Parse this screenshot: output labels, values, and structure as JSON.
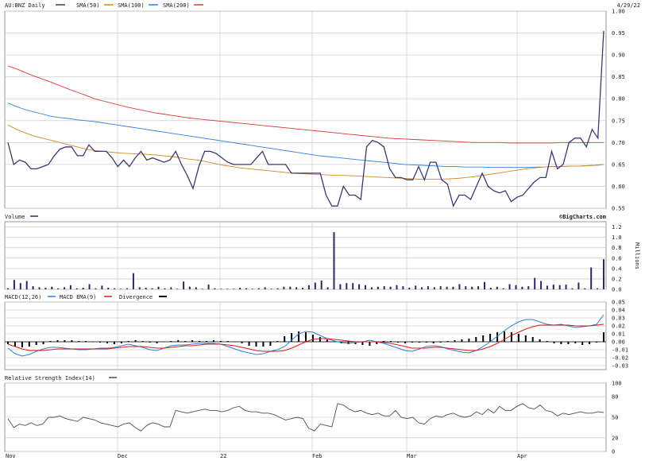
{
  "date": "4/29/22",
  "source": "©BigCharts.com",
  "months": [
    "Nov",
    "Dec",
    "22",
    "Feb",
    "Mar",
    "Apr"
  ],
  "colors": {
    "price": "#3a3a6e",
    "sma50": "#d08a2a",
    "sma100": "#2e7fe0",
    "sma200": "#d83a3a",
    "volume": "#2a2a5c",
    "macd": "#2e7fe0",
    "ema": "#d81c1c",
    "divergence": "#000000",
    "rsi": "#4a4a6e"
  },
  "chart_data": [
    {
      "type": "line",
      "title": "AU:BNZ Daily",
      "legend": [
        "AU:BNZ Daily",
        "SMA(50)",
        "SMA(100)",
        "SMA(200)"
      ],
      "y_ticks": [
        "0.55",
        "0.60",
        "0.65",
        "0.70",
        "0.75",
        "0.80",
        "0.85",
        "0.90",
        "0.95",
        "1.00"
      ],
      "ylim": [
        0.55,
        1.0
      ],
      "n": 104,
      "series": [
        {
          "name": "AU:BNZ Daily",
          "values": [
            0.7,
            0.65,
            0.66,
            0.655,
            0.64,
            0.64,
            0.645,
            0.65,
            0.67,
            0.685,
            0.69,
            0.69,
            0.67,
            0.67,
            0.695,
            0.68,
            0.68,
            0.68,
            0.665,
            0.645,
            0.66,
            0.645,
            0.665,
            0.68,
            0.66,
            0.665,
            0.66,
            0.655,
            0.66,
            0.68,
            0.65,
            0.625,
            0.595,
            0.645,
            0.68,
            0.68,
            0.675,
            0.665,
            0.655,
            0.65,
            0.65,
            0.65,
            0.65,
            0.665,
            0.68,
            0.65,
            0.65,
            0.65,
            0.65,
            0.63,
            0.63,
            0.63,
            0.63,
            0.63,
            0.63,
            0.58,
            0.555,
            0.555,
            0.6,
            0.58,
            0.58,
            0.57,
            0.69,
            0.705,
            0.7,
            0.69,
            0.64,
            0.62,
            0.62,
            0.615,
            0.615,
            0.645,
            0.615,
            0.655,
            0.655,
            0.615,
            0.605,
            0.555,
            0.58,
            0.58,
            0.57,
            0.6,
            0.63,
            0.6,
            0.59,
            0.585,
            0.59,
            0.565,
            0.575,
            0.58,
            0.595,
            0.61,
            0.62,
            0.62,
            0.68,
            0.64,
            0.65,
            0.7,
            0.71,
            0.71,
            0.69,
            0.73,
            0.71,
            0.955
          ]
        },
        {
          "name": "SMA(50)",
          "values": [
            0.74,
            0.73,
            0.722,
            0.715,
            0.71,
            0.705,
            0.7,
            0.695,
            0.69,
            0.685,
            0.682,
            0.68,
            0.678,
            0.676,
            0.675,
            0.674,
            0.673,
            0.672,
            0.67,
            0.668,
            0.665,
            0.662,
            0.66,
            0.656,
            0.652,
            0.648,
            0.645,
            0.642,
            0.64,
            0.638,
            0.636,
            0.634,
            0.632,
            0.63,
            0.629,
            0.628,
            0.627,
            0.626,
            0.625,
            0.625,
            0.624,
            0.623,
            0.622,
            0.621,
            0.62,
            0.619,
            0.618,
            0.617,
            0.616,
            0.616,
            0.616,
            0.617,
            0.618,
            0.62,
            0.622,
            0.625,
            0.628,
            0.631,
            0.634,
            0.637,
            0.64,
            0.642,
            0.644,
            0.645,
            0.645,
            0.646,
            0.646,
            0.647,
            0.648,
            0.65
          ]
        },
        {
          "name": "SMA(100)",
          "values": [
            0.79,
            0.782,
            0.775,
            0.77,
            0.765,
            0.76,
            0.757,
            0.755,
            0.752,
            0.75,
            0.748,
            0.745,
            0.742,
            0.739,
            0.736,
            0.733,
            0.73,
            0.727,
            0.724,
            0.721,
            0.718,
            0.715,
            0.712,
            0.709,
            0.706,
            0.703,
            0.7,
            0.697,
            0.694,
            0.691,
            0.688,
            0.685,
            0.682,
            0.679,
            0.676,
            0.673,
            0.67,
            0.668,
            0.666,
            0.664,
            0.662,
            0.66,
            0.658,
            0.656,
            0.654,
            0.652,
            0.65,
            0.649,
            0.648,
            0.647,
            0.646,
            0.645,
            0.645,
            0.644,
            0.644,
            0.644,
            0.643,
            0.643,
            0.643,
            0.643,
            0.643,
            0.644,
            0.644,
            0.645,
            0.645,
            0.646,
            0.646,
            0.647,
            0.648,
            0.65
          ]
        },
        {
          "name": "SMA(200)",
          "values": [
            0.875,
            0.868,
            0.86,
            0.852,
            0.845,
            0.838,
            0.83,
            0.822,
            0.815,
            0.808,
            0.8,
            0.795,
            0.79,
            0.785,
            0.78,
            0.776,
            0.772,
            0.768,
            0.765,
            0.762,
            0.759,
            0.756,
            0.754,
            0.752,
            0.75,
            0.748,
            0.746,
            0.744,
            0.742,
            0.74,
            0.738,
            0.736,
            0.734,
            0.732,
            0.73,
            0.728,
            0.726,
            0.724,
            0.722,
            0.72,
            0.718,
            0.716,
            0.714,
            0.712,
            0.71,
            0.709,
            0.708,
            0.707,
            0.706,
            0.705,
            0.704,
            0.703,
            0.702,
            0.701,
            0.7,
            0.7,
            0.7,
            0.7,
            0.699,
            0.699,
            0.699,
            0.699,
            0.699,
            0.699,
            0.7,
            0.7,
            0.7,
            0.7,
            0.7,
            0.7
          ]
        }
      ]
    },
    {
      "type": "bar",
      "title": "Volume",
      "legend": [
        "Volume"
      ],
      "ylabel": "Millions",
      "y_ticks": [
        "0.0",
        "0.2",
        "0.4",
        "0.6",
        "0.8",
        "1.0",
        "1.2"
      ],
      "ylim": [
        0,
        1.3
      ],
      "values": [
        0.02,
        0.18,
        0.12,
        0.16,
        0.06,
        0.04,
        0.03,
        0.05,
        0.02,
        0.04,
        0.08,
        0.02,
        0.03,
        0.1,
        0.02,
        0.07,
        0.03,
        0.02,
        0.01,
        0.02,
        0.31,
        0.04,
        0.03,
        0.02,
        0.05,
        0.02,
        0.04,
        0.01,
        0.15,
        0.05,
        0.04,
        0.01,
        0.09,
        0.02,
        0.01,
        0.01,
        0.01,
        0.03,
        0.02,
        0.01,
        0.02,
        0.04,
        0.01,
        0.02,
        0.05,
        0.05,
        0.04,
        0.03,
        0.08,
        0.13,
        0.17,
        0.04,
        1.1,
        0.1,
        0.12,
        0.12,
        0.1,
        0.08,
        0.04,
        0.05,
        0.06,
        0.05,
        0.08,
        0.06,
        0.03,
        0.07,
        0.04,
        0.06,
        0.04,
        0.06,
        0.05,
        0.05,
        0.1,
        0.06,
        0.05,
        0.06,
        0.14,
        0.03,
        0.05,
        0.02,
        0.1,
        0.08,
        0.05,
        0.06,
        0.22,
        0.16,
        0.07,
        0.09,
        0.08,
        0.09,
        0.02,
        0.13,
        0.02,
        0.42,
        0.02,
        0.58
      ]
    },
    {
      "type": "line",
      "title": "MACD(12,26)",
      "legend": [
        "MACD(12,26)",
        "MACD EMA(9)",
        "Divergence"
      ],
      "y_ticks": [
        "-0.03",
        "-0.02",
        "-0.01",
        "0.00",
        "0.01",
        "0.02",
        "0.03",
        "0.04",
        "0.05"
      ],
      "ylim": [
        -0.035,
        0.05
      ],
      "n": 104,
      "series": [
        {
          "name": "MACD(12,26)",
          "values": [
            -0.008,
            -0.015,
            -0.018,
            -0.016,
            -0.012,
            -0.009,
            -0.007,
            -0.007,
            -0.008,
            -0.009,
            -0.01,
            -0.01,
            -0.009,
            -0.008,
            -0.008,
            -0.007,
            -0.005,
            -0.003,
            -0.005,
            -0.007,
            -0.01,
            -0.011,
            -0.008,
            -0.005,
            -0.004,
            -0.004,
            -0.003,
            -0.002,
            -0.002,
            -0.002,
            -0.003,
            -0.006,
            -0.009,
            -0.012,
            -0.014,
            -0.016,
            -0.015,
            -0.012,
            -0.01,
            -0.006,
            0.002,
            0.01,
            0.013,
            0.012,
            0.008,
            0.004,
            0.001,
            -0.001,
            -0.002,
            -0.001,
            0.0,
            0.002,
            0.0,
            -0.002,
            -0.005,
            -0.008,
            -0.011,
            -0.012,
            -0.009,
            -0.006,
            -0.005,
            -0.006,
            -0.009,
            -0.011,
            -0.013,
            -0.014,
            -0.011,
            -0.006,
            0.0,
            0.007,
            0.014,
            0.02,
            0.025,
            0.028,
            0.028,
            0.025,
            0.022,
            0.021,
            0.022,
            0.02,
            0.018,
            0.019,
            0.02,
            0.022,
            0.034
          ]
        },
        {
          "name": "MACD EMA(9)",
          "values": [
            -0.003,
            -0.006,
            -0.009,
            -0.011,
            -0.011,
            -0.011,
            -0.01,
            -0.009,
            -0.009,
            -0.009,
            -0.009,
            -0.009,
            -0.009,
            -0.009,
            -0.009,
            -0.008,
            -0.007,
            -0.006,
            -0.006,
            -0.006,
            -0.007,
            -0.008,
            -0.008,
            -0.007,
            -0.006,
            -0.005,
            -0.005,
            -0.004,
            -0.003,
            -0.003,
            -0.003,
            -0.004,
            -0.005,
            -0.007,
            -0.009,
            -0.011,
            -0.012,
            -0.012,
            -0.012,
            -0.011,
            -0.008,
            -0.004,
            0.0,
            0.003,
            0.004,
            0.004,
            0.003,
            0.002,
            0.001,
            0.0,
            0.0,
            0.0,
            0.0,
            -0.001,
            -0.002,
            -0.004,
            -0.006,
            -0.008,
            -0.008,
            -0.008,
            -0.007,
            -0.007,
            -0.008,
            -0.009,
            -0.01,
            -0.011,
            -0.011,
            -0.009,
            -0.006,
            -0.002,
            0.003,
            0.008,
            0.012,
            0.016,
            0.019,
            0.021,
            0.021,
            0.021,
            0.021,
            0.021,
            0.02,
            0.02,
            0.02,
            0.021,
            0.022
          ]
        },
        {
          "name": "Divergence",
          "values": [
            -0.003,
            -0.006,
            -0.007,
            -0.006,
            -0.004,
            -0.003,
            0.001,
            0.002,
            0.002,
            0.002,
            0.001,
            0.001,
            0.0,
            -0.001,
            -0.002,
            -0.003,
            -0.002,
            0.001,
            0.002,
            0.001,
            -0.001,
            -0.002,
            0.0,
            0.001,
            0.002,
            0.001,
            0.002,
            0.001,
            0.001,
            0.002,
            0.001,
            0.001,
            0.0,
            -0.002,
            -0.005,
            -0.006,
            -0.006,
            -0.005,
            0.001,
            0.007,
            0.011,
            0.013,
            0.012,
            0.009,
            0.006,
            0.003,
            0.001,
            -0.002,
            -0.003,
            -0.003,
            -0.004,
            -0.005,
            -0.003,
            0.001,
            0.001,
            -0.001,
            -0.002,
            -0.001,
            -0.001,
            -0.001,
            -0.002,
            -0.001,
            0.001,
            0.002,
            0.003,
            0.004,
            0.006,
            0.008,
            0.01,
            0.012,
            0.013,
            0.012,
            0.01,
            0.008,
            0.006,
            0.003,
            0.001,
            -0.002,
            -0.003,
            -0.003,
            -0.002,
            -0.004,
            -0.003,
            -0.001,
            0.012
          ]
        }
      ]
    },
    {
      "type": "line",
      "title": "Relative Strength Index(14)",
      "legend": [
        "Relative Strength Index(14)"
      ],
      "y_ticks": [
        "0",
        "20",
        "50",
        "80",
        "100"
      ],
      "ylim": [
        0,
        100
      ],
      "values": [
        48,
        35,
        40,
        38,
        42,
        38,
        40,
        50,
        50,
        52,
        48,
        46,
        44,
        50,
        48,
        46,
        42,
        40,
        38,
        36,
        40,
        42,
        35,
        30,
        38,
        42,
        40,
        36,
        36,
        60,
        58,
        56,
        58,
        60,
        62,
        60,
        60,
        58,
        60,
        64,
        66,
        60,
        58,
        58,
        56,
        56,
        54,
        50,
        46,
        48,
        50,
        48,
        34,
        30,
        40,
        38,
        36,
        70,
        68,
        62,
        58,
        60,
        56,
        54,
        56,
        52,
        52,
        60,
        50,
        48,
        50,
        42,
        40,
        48,
        52,
        50,
        54,
        56,
        52,
        50,
        52,
        58,
        54,
        62,
        56,
        66,
        60,
        60,
        66,
        70,
        64,
        62,
        68,
        60,
        58,
        52,
        56,
        54,
        56,
        58,
        56,
        56,
        58,
        57
      ]
    }
  ]
}
